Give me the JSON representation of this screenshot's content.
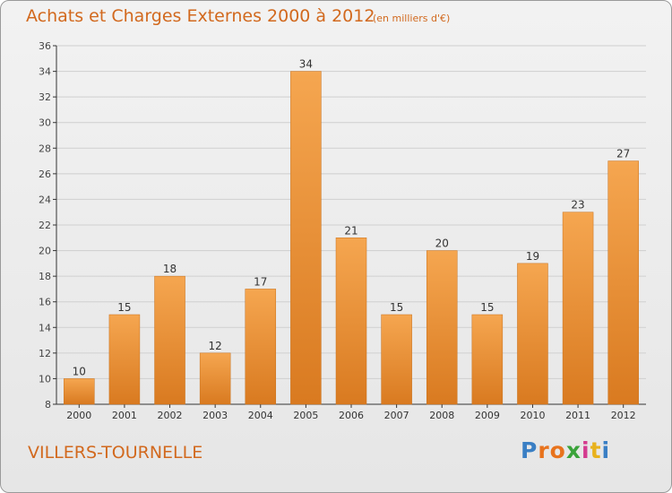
{
  "title": "Achats et Charges Externes 2000 à 2012",
  "unit_note": "(en milliers d'€)",
  "commune": "VILLERS-TOURNELLE",
  "logo": {
    "letters": [
      "P",
      "r",
      "o",
      "x",
      "i",
      "t",
      "i"
    ],
    "colors": [
      "#3a7fc4",
      "#e8731d",
      "#e8731d",
      "#3aa33a",
      "#d43b8f",
      "#e8b21d",
      "#3a7fc4"
    ]
  },
  "colors": {
    "bar_light": "#f5a650",
    "bar_dark": "#d97a20",
    "text": "#d2691e",
    "grid": "#cfcfcf",
    "axis": "#333333"
  },
  "chart_data": {
    "type": "bar",
    "categories": [
      "2000",
      "2001",
      "2002",
      "2003",
      "2004",
      "2005",
      "2006",
      "2007",
      "2008",
      "2009",
      "2010",
      "2011",
      "2012"
    ],
    "values": [
      10,
      15,
      18,
      12,
      17,
      34,
      21,
      15,
      20,
      15,
      19,
      23,
      27
    ],
    "ylim": [
      8,
      36
    ],
    "yticks": [
      8,
      10,
      12,
      14,
      16,
      18,
      20,
      22,
      24,
      26,
      28,
      30,
      32,
      34,
      36
    ],
    "grid": "horizontal"
  }
}
